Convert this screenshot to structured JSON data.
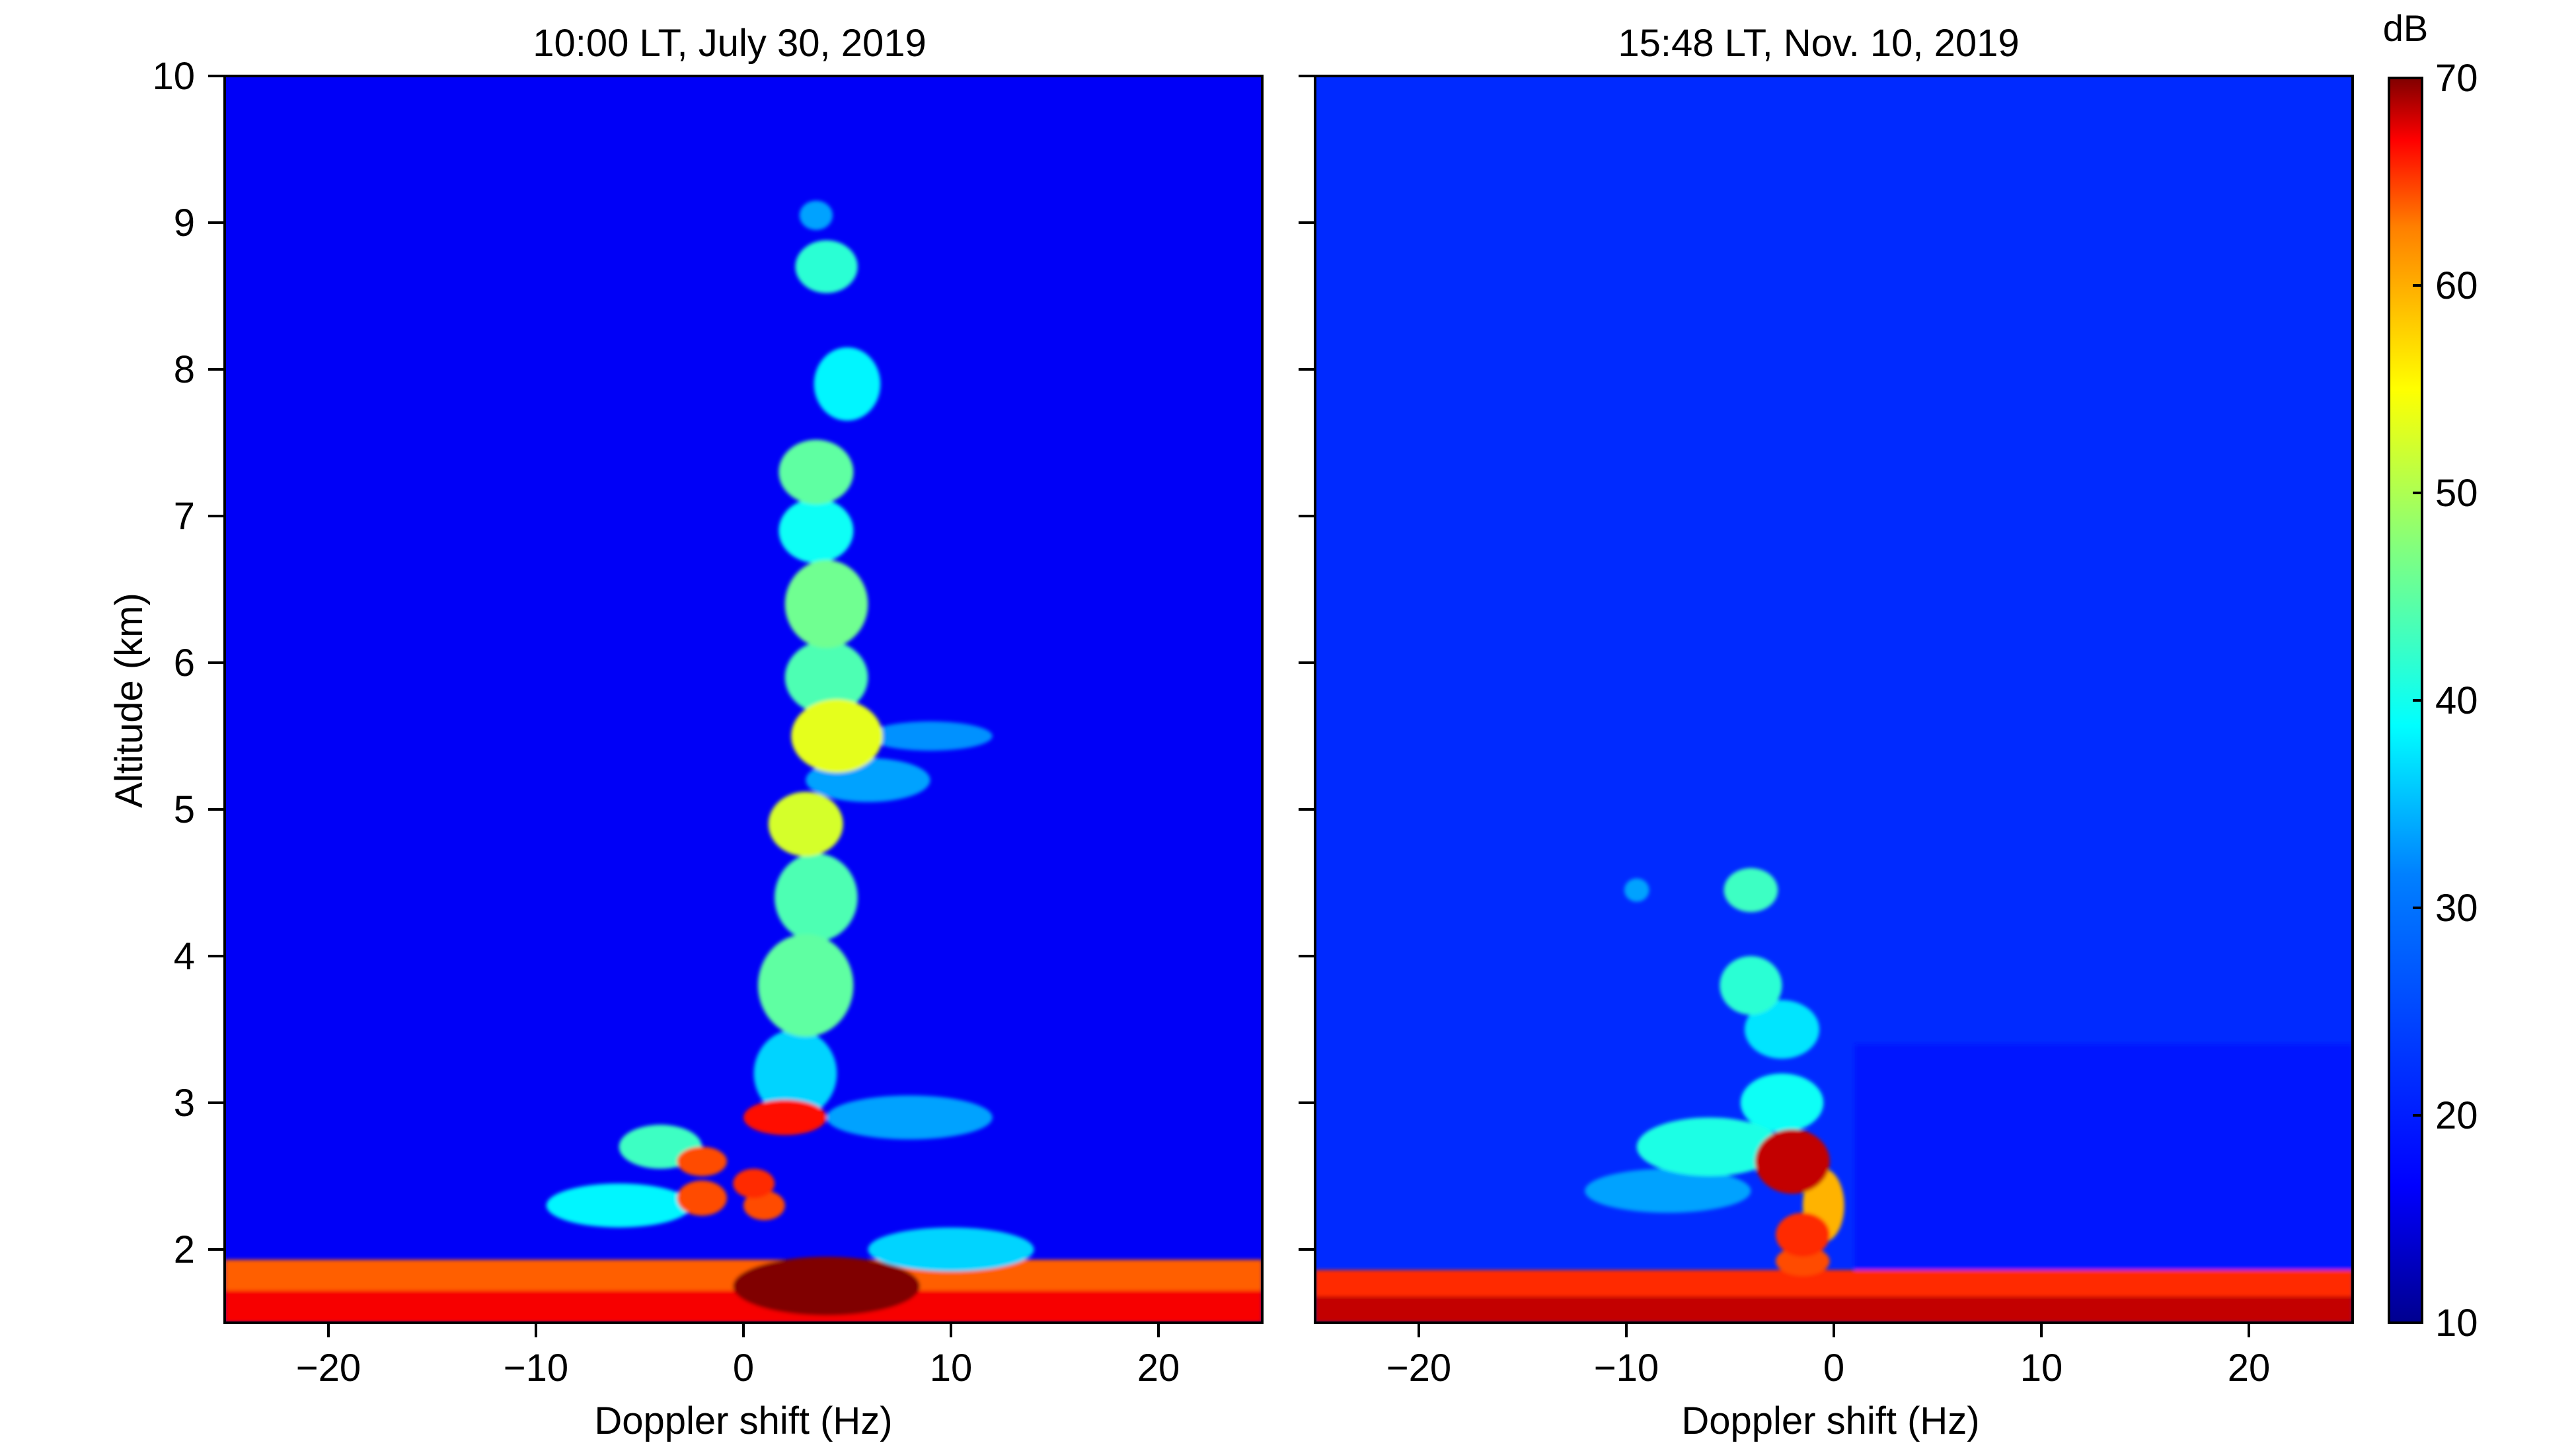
{
  "figure": {
    "colorbar": {
      "unit": "dB",
      "min": 10,
      "max": 70,
      "ticks": [
        10,
        20,
        30,
        40,
        50,
        60,
        70
      ],
      "colormap": "jet",
      "colors": [
        "#00008f",
        "#0000ff",
        "#00ffff",
        "#ffff00",
        "#ff0000",
        "#800000"
      ]
    }
  },
  "chart_data": [
    {
      "type": "heatmap",
      "title": "10:00 LT, July 30, 2019",
      "xlabel": "Doppler shift (Hz)",
      "ylabel": "Altitude (km)",
      "xlim": [
        -25,
        25
      ],
      "ylim": [
        1.5,
        10
      ],
      "xticks": [
        -20,
        -10,
        0,
        10,
        20
      ],
      "yticks": [
        2,
        3,
        4,
        5,
        6,
        7,
        8,
        9,
        10
      ],
      "colorbar_unit": "dB",
      "zlim": [
        10,
        70
      ],
      "background_dB": 17,
      "features": [
        {
          "kind": "band",
          "alt_range": [
            1.5,
            1.93
          ],
          "dop_range": [
            -25,
            25
          ],
          "dB": 57
        },
        {
          "kind": "band",
          "alt_range": [
            1.5,
            1.72
          ],
          "dop_range": [
            -25,
            25
          ],
          "dB": 63
        },
        {
          "kind": "blob",
          "alt": 1.75,
          "dop": 4.0,
          "alt_w": 0.2,
          "dop_w": 4.5,
          "dB": 72
        },
        {
          "kind": "blob",
          "alt": 2.0,
          "dop": 10.0,
          "alt_w": 0.15,
          "dop_w": 4.0,
          "dB": 30
        },
        {
          "kind": "blob",
          "alt": 2.3,
          "dop": 1.0,
          "alt_w": 0.1,
          "dop_w": 1.0,
          "dB": 58
        },
        {
          "kind": "blob",
          "alt": 2.45,
          "dop": 0.5,
          "alt_w": 0.1,
          "dop_w": 1.0,
          "dB": 60
        },
        {
          "kind": "blob",
          "alt": 2.35,
          "dop": -2.0,
          "alt_w": 0.12,
          "dop_w": 1.2,
          "dB": 58
        },
        {
          "kind": "blob",
          "alt": 2.6,
          "dop": -2.0,
          "alt_w": 0.1,
          "dop_w": 1.2,
          "dB": 58
        },
        {
          "kind": "blob",
          "alt": 2.3,
          "dop": -6.0,
          "alt_w": 0.15,
          "dop_w": 3.5,
          "dB": 32
        },
        {
          "kind": "blob",
          "alt": 2.7,
          "dop": -4.0,
          "alt_w": 0.15,
          "dop_w": 2.0,
          "dB": 36
        },
        {
          "kind": "blob",
          "alt": 2.9,
          "dop": 2.0,
          "alt_w": 0.12,
          "dop_w": 2.0,
          "dB": 62
        },
        {
          "kind": "blob",
          "alt": 2.9,
          "dop": 8.0,
          "alt_w": 0.15,
          "dop_w": 4.0,
          "dB": 27
        },
        {
          "kind": "blob",
          "alt": 3.2,
          "dop": 2.5,
          "alt_w": 0.3,
          "dop_w": 2.0,
          "dB": 30
        },
        {
          "kind": "blob",
          "alt": 3.8,
          "dop": 3.0,
          "alt_w": 0.35,
          "dop_w": 2.3,
          "dB": 38
        },
        {
          "kind": "blob",
          "alt": 4.4,
          "dop": 3.5,
          "alt_w": 0.3,
          "dop_w": 2.0,
          "dB": 37
        },
        {
          "kind": "blob",
          "alt": 4.9,
          "dop": 3.0,
          "alt_w": 0.22,
          "dop_w": 1.8,
          "dB": 45
        },
        {
          "kind": "blob",
          "alt": 5.2,
          "dop": 6.0,
          "alt_w": 0.15,
          "dop_w": 3.0,
          "dB": 27
        },
        {
          "kind": "blob",
          "alt": 5.5,
          "dop": 4.5,
          "alt_w": 0.25,
          "dop_w": 2.2,
          "dB": 46
        },
        {
          "kind": "blob",
          "alt": 5.5,
          "dop": 9.0,
          "alt_w": 0.1,
          "dop_w": 3.0,
          "dB": 26
        },
        {
          "kind": "blob",
          "alt": 5.9,
          "dop": 4.0,
          "alt_w": 0.25,
          "dop_w": 2.0,
          "dB": 37
        },
        {
          "kind": "blob",
          "alt": 6.4,
          "dop": 4.0,
          "alt_w": 0.3,
          "dop_w": 2.0,
          "dB": 39
        },
        {
          "kind": "blob",
          "alt": 6.9,
          "dop": 3.5,
          "alt_w": 0.22,
          "dop_w": 1.8,
          "dB": 33
        },
        {
          "kind": "blob",
          "alt": 7.3,
          "dop": 3.5,
          "alt_w": 0.22,
          "dop_w": 1.8,
          "dB": 38
        },
        {
          "kind": "blob",
          "alt": 7.9,
          "dop": 5.0,
          "alt_w": 0.25,
          "dop_w": 1.6,
          "dB": 32
        },
        {
          "kind": "blob",
          "alt": 8.7,
          "dop": 4.0,
          "alt_w": 0.18,
          "dop_w": 1.5,
          "dB": 35
        },
        {
          "kind": "blob",
          "alt": 9.05,
          "dop": 3.5,
          "alt_w": 0.1,
          "dop_w": 0.8,
          "dB": 27
        }
      ]
    },
    {
      "type": "heatmap",
      "title": "15:48 LT, Nov. 10, 2019",
      "xlabel": "Doppler shift (Hz)",
      "ylabel": "",
      "xlim": [
        -25,
        25
      ],
      "ylim": [
        1.5,
        10
      ],
      "xticks": [
        -20,
        -10,
        0,
        10,
        20
      ],
      "yticks": [
        2,
        3,
        4,
        5,
        6,
        7,
        8,
        9,
        10
      ],
      "colorbar_unit": "dB",
      "zlim": [
        10,
        70
      ],
      "background_dB": 20,
      "features": [
        {
          "kind": "band",
          "alt_range": [
            1.5,
            1.86
          ],
          "dop_range": [
            -25,
            25
          ],
          "dB": 60
        },
        {
          "kind": "band",
          "alt_range": [
            1.5,
            1.68
          ],
          "dop_range": [
            -25,
            25
          ],
          "dB": 66
        },
        {
          "kind": "band",
          "alt_range": [
            1.86,
            3.4
          ],
          "dop_range": [
            1,
            25
          ],
          "dB": 19
        },
        {
          "kind": "blob",
          "alt": 2.6,
          "dop": -2.0,
          "alt_w": 0.22,
          "dop_w": 1.8,
          "dB": 66
        },
        {
          "kind": "blob",
          "alt": 2.1,
          "dop": -1.5,
          "alt_w": 0.15,
          "dop_w": 1.3,
          "dB": 60
        },
        {
          "kind": "blob",
          "alt": 1.92,
          "dop": -1.5,
          "alt_w": 0.1,
          "dop_w": 1.3,
          "dB": 58
        },
        {
          "kind": "blob",
          "alt": 2.3,
          "dop": -0.5,
          "alt_w": 0.25,
          "dop_w": 1.0,
          "dB": 52
        },
        {
          "kind": "blob",
          "alt": 2.7,
          "dop": -6.0,
          "alt_w": 0.2,
          "dop_w": 3.5,
          "dB": 34
        },
        {
          "kind": "blob",
          "alt": 2.4,
          "dop": -8.0,
          "alt_w": 0.15,
          "dop_w": 4.0,
          "dB": 27
        },
        {
          "kind": "blob",
          "alt": 3.0,
          "dop": -2.5,
          "alt_w": 0.2,
          "dop_w": 2.0,
          "dB": 33
        },
        {
          "kind": "blob",
          "alt": 3.5,
          "dop": -2.5,
          "alt_w": 0.2,
          "dop_w": 1.8,
          "dB": 31
        },
        {
          "kind": "blob",
          "alt": 3.8,
          "dop": -4.0,
          "alt_w": 0.2,
          "dop_w": 1.5,
          "dB": 35
        },
        {
          "kind": "blob",
          "alt": 4.45,
          "dop": -4.0,
          "alt_w": 0.15,
          "dop_w": 1.3,
          "dB": 36
        },
        {
          "kind": "blob",
          "alt": 4.45,
          "dop": -9.5,
          "alt_w": 0.08,
          "dop_w": 0.6,
          "dB": 27
        }
      ]
    }
  ]
}
